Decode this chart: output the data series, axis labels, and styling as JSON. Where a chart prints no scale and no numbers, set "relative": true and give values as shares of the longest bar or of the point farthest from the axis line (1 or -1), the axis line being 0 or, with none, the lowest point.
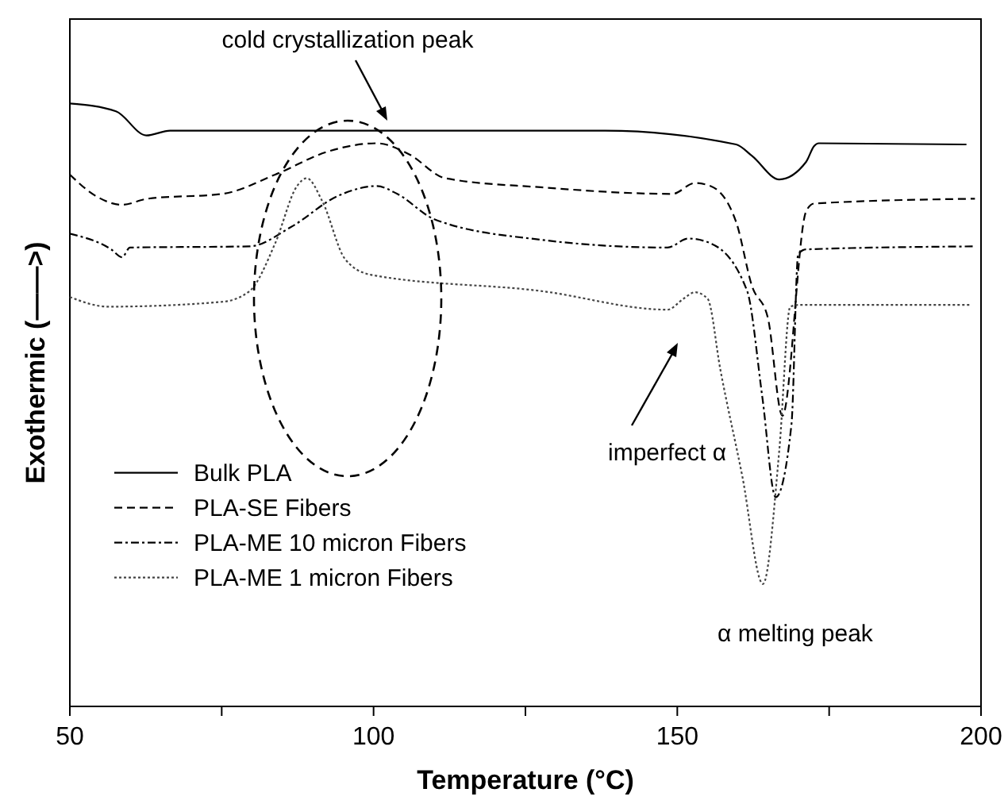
{
  "chart_data": {
    "type": "line",
    "relative": true,
    "xlabel": "Temperature (°C)",
    "ylabel": "Exothermic (——>)",
    "xlim": [
      50,
      200
    ],
    "xticks": [
      50,
      {
        "value": 75,
        "label": null
      },
      100,
      {
        "value": 125,
        "label": null
      },
      150,
      {
        "value": 175,
        "label": null
      },
      200
    ],
    "legend": "left",
    "grid": false,
    "annotations": [
      "cold crystallization peak",
      "imperfect α",
      "α melting peak"
    ],
    "series": [
      {
        "name": "Bulk PLA",
        "color": "#000000",
        "line_style": "solid",
        "x": [
          50,
          57.6,
          62.6,
          66.5,
          83.8,
          124.9,
          138,
          159.7,
          162.3,
          166.8,
          171.2,
          172.5,
          173.3,
          197.6
        ],
        "values": [
          1.0,
          0.987,
          0.947,
          0.955,
          0.955,
          0.955,
          0.955,
          0.932,
          0.913,
          0.874,
          0.903,
          0.929,
          0.934,
          0.932
        ]
      },
      {
        "name": "PLA-SE Fibers",
        "color": "#000000",
        "line_style": "dashed",
        "x": [
          50,
          54.2,
          58.6,
          62.8,
          75.1,
          83.8,
          92.7,
          100.5,
          105.8,
          111.8,
          127.5,
          149.2,
          152.9,
          155.5,
          159.7,
          162.3,
          164.9,
          167.3,
          171.2,
          172.5,
          199
        ],
        "values": [
          0.882,
          0.847,
          0.832,
          0.842,
          0.85,
          0.882,
          0.921,
          0.934,
          0.916,
          0.876,
          0.861,
          0.85,
          0.868,
          0.863,
          0.803,
          0.697,
          0.645,
          0.482,
          0.821,
          0.834,
          0.842
        ]
      },
      {
        "name": "PLA-ME 10 micron Fibers",
        "color": "#000000",
        "line_style": "dashdot",
        "x": [
          50,
          56.8,
          58.6,
          59.9,
          79.6,
          86.4,
          94.2,
          100.5,
          103.9,
          110,
          127.5,
          148.4,
          151.8,
          155.5,
          161.5,
          164,
          166.2,
          168.8,
          169.9,
          171.2,
          199
        ],
        "values": [
          0.784,
          0.758,
          0.745,
          0.761,
          0.763,
          0.795,
          0.847,
          0.863,
          0.85,
          0.808,
          0.774,
          0.761,
          0.776,
          0.768,
          0.689,
          0.513,
          0.347,
          0.468,
          0.75,
          0.758,
          0.763
        ]
      },
      {
        "name": "PLA-ME 1 micron Fibers",
        "color": "#444444",
        "line_style": "dotted",
        "x": [
          50,
          56.3,
          75.1,
          79.6,
          83.8,
          87.4,
          89,
          91.6,
          95.3,
          99.5,
          127.5,
          148.4,
          151,
          152.9,
          155,
          157.1,
          160.7,
          164.1,
          166.8,
          168.6,
          170.2,
          198.2
        ],
        "values": [
          0.679,
          0.663,
          0.671,
          0.689,
          0.768,
          0.863,
          0.876,
          0.837,
          0.742,
          0.716,
          0.689,
          0.658,
          0.676,
          0.687,
          0.676,
          0.558,
          0.382,
          0.203,
          0.426,
          0.663,
          0.666,
          0.666
        ]
      }
    ]
  }
}
